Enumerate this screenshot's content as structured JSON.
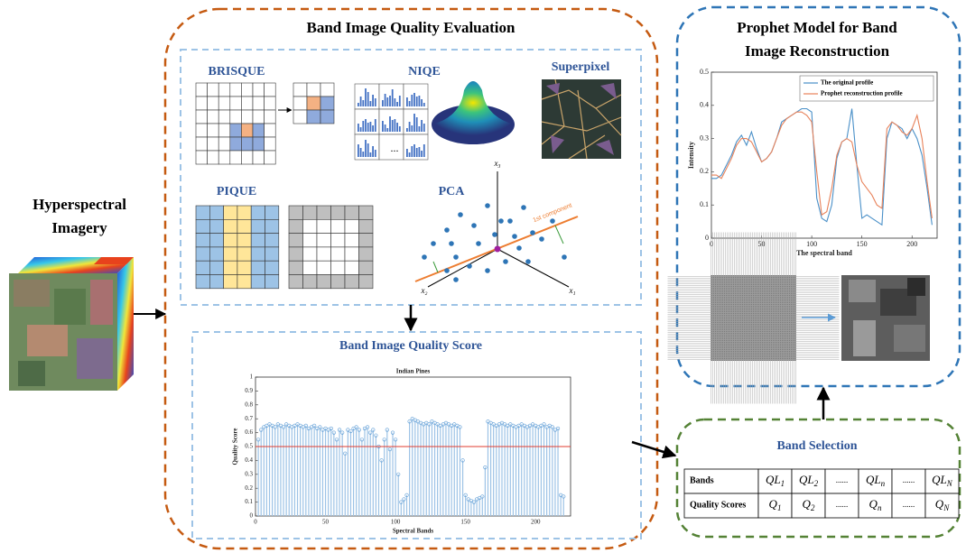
{
  "input": {
    "title": [
      "Hyperspectral",
      "Imagery"
    ]
  },
  "evaluation": {
    "title": "Band Image Quality Evaluation",
    "methods": [
      "BRISQUE",
      "NIQE",
      "Superpixel",
      "PIQUE",
      "PCA"
    ],
    "niqe_ellipsis": "...",
    "pca_labels": [
      "x₃",
      "x₂",
      "x₁",
      "1st component"
    ]
  },
  "score": {
    "title": "Band Image Quality Score",
    "chart_data": {
      "type": "bar",
      "title": "Indian Pines",
      "x_label": "Spectral Bands",
      "y_label": "Quality Score",
      "color": "#9dc3e6",
      "marker_color": "#5b9bd5",
      "threshold": 0.5,
      "threshold_color": "#e03c31",
      "xlim": [
        0,
        225
      ],
      "xticks": [
        0,
        50,
        100,
        150,
        200
      ],
      "ylim": [
        0,
        1
      ],
      "yticks": [
        0,
        0.1,
        0.2,
        0.3,
        0.4,
        0.5,
        0.6,
        0.7,
        0.8,
        0.9,
        1
      ],
      "x": [
        2,
        4,
        6,
        8,
        10,
        12,
        14,
        16,
        18,
        20,
        22,
        24,
        26,
        28,
        30,
        32,
        34,
        36,
        38,
        40,
        42,
        44,
        46,
        48,
        50,
        52,
        54,
        56,
        58,
        60,
        62,
        64,
        66,
        68,
        70,
        72,
        74,
        76,
        78,
        80,
        82,
        84,
        86,
        88,
        90,
        92,
        94,
        96,
        98,
        100,
        102,
        104,
        106,
        108,
        110,
        112,
        114,
        116,
        118,
        120,
        122,
        124,
        126,
        128,
        130,
        132,
        134,
        136,
        138,
        140,
        142,
        144,
        146,
        148,
        150,
        152,
        154,
        156,
        158,
        160,
        162,
        164,
        166,
        168,
        170,
        172,
        174,
        176,
        178,
        180,
        182,
        184,
        186,
        188,
        190,
        192,
        194,
        196,
        198,
        200,
        202,
        204,
        206,
        208,
        210,
        212,
        214,
        216,
        218,
        220
      ],
      "values": [
        0.55,
        0.62,
        0.64,
        0.65,
        0.66,
        0.65,
        0.64,
        0.66,
        0.65,
        0.64,
        0.66,
        0.65,
        0.64,
        0.65,
        0.66,
        0.65,
        0.64,
        0.65,
        0.63,
        0.64,
        0.65,
        0.63,
        0.64,
        0.62,
        0.63,
        0.62,
        0.63,
        0.6,
        0.55,
        0.62,
        0.6,
        0.45,
        0.62,
        0.61,
        0.63,
        0.64,
        0.62,
        0.55,
        0.63,
        0.64,
        0.6,
        0.62,
        0.58,
        0.5,
        0.4,
        0.55,
        0.62,
        0.48,
        0.6,
        0.55,
        0.3,
        0.1,
        0.12,
        0.15,
        0.68,
        0.7,
        0.69,
        0.68,
        0.67,
        0.66,
        0.67,
        0.66,
        0.68,
        0.67,
        0.66,
        0.65,
        0.66,
        0.67,
        0.66,
        0.65,
        0.66,
        0.65,
        0.64,
        0.4,
        0.15,
        0.12,
        0.11,
        0.1,
        0.12,
        0.13,
        0.14,
        0.35,
        0.68,
        0.67,
        0.66,
        0.65,
        0.66,
        0.67,
        0.66,
        0.65,
        0.66,
        0.65,
        0.64,
        0.65,
        0.66,
        0.65,
        0.64,
        0.65,
        0.66,
        0.65,
        0.64,
        0.65,
        0.66,
        0.64,
        0.65,
        0.64,
        0.62,
        0.63,
        0.15,
        0.14
      ]
    }
  },
  "prophet": {
    "title": [
      "Prophet Model for Band",
      "Image Reconstruction"
    ],
    "chart_data": {
      "type": "line",
      "x_label": "The spectral band",
      "y_label": "Intensity",
      "legend": "upper-right",
      "xlim": [
        0,
        225
      ],
      "xticks": [
        0,
        50,
        100,
        150,
        200
      ],
      "ylim": [
        0,
        0.5
      ],
      "yticks": [
        0,
        0.1,
        0.2,
        0.3,
        0.4,
        0.5
      ],
      "x": [
        0,
        5,
        10,
        15,
        20,
        25,
        30,
        35,
        40,
        45,
        50,
        55,
        60,
        65,
        70,
        75,
        80,
        85,
        90,
        95,
        100,
        105,
        110,
        115,
        120,
        125,
        130,
        135,
        140,
        145,
        150,
        155,
        160,
        165,
        170,
        175,
        180,
        185,
        190,
        195,
        200,
        205,
        210,
        215,
        220
      ],
      "series": [
        {
          "name": "The original profile",
          "color": "#4a90c8",
          "values": [
            0.18,
            0.18,
            0.19,
            0.22,
            0.25,
            0.29,
            0.31,
            0.28,
            0.32,
            0.27,
            0.23,
            0.24,
            0.26,
            0.3,
            0.35,
            0.36,
            0.37,
            0.38,
            0.39,
            0.39,
            0.38,
            0.12,
            0.06,
            0.05,
            0.1,
            0.24,
            0.29,
            0.3,
            0.39,
            0.22,
            0.06,
            0.07,
            0.06,
            0.05,
            0.04,
            0.3,
            0.35,
            0.34,
            0.33,
            0.3,
            0.33,
            0.3,
            0.25,
            0.15,
            0.04
          ]
        },
        {
          "name": "Prophet reconstruction profile",
          "color": "#e8825a",
          "values": [
            0.19,
            0.19,
            0.18,
            0.21,
            0.24,
            0.28,
            0.3,
            0.3,
            0.29,
            0.26,
            0.23,
            0.24,
            0.26,
            0.3,
            0.34,
            0.36,
            0.37,
            0.38,
            0.38,
            0.37,
            0.35,
            0.2,
            0.07,
            0.08,
            0.15,
            0.25,
            0.29,
            0.3,
            0.29,
            0.22,
            0.17,
            0.15,
            0.13,
            0.1,
            0.09,
            0.33,
            0.35,
            0.34,
            0.32,
            0.31,
            0.33,
            0.37,
            0.3,
            0.17,
            0.06
          ]
        }
      ]
    }
  },
  "selection": {
    "title": "Band Selection",
    "table": {
      "rows": [
        [
          "Bands",
          {
            "base": "QL",
            "sub": "1"
          },
          {
            "base": "QL",
            "sub": "2"
          },
          "......",
          {
            "base": "QL",
            "sub": "n"
          },
          "......",
          {
            "base": "QL",
            "sub": "N"
          }
        ],
        [
          "Quality Scores",
          {
            "base": "Q",
            "sub": "1"
          },
          {
            "base": "Q",
            "sub": "2"
          },
          "......",
          {
            "base": "Q",
            "sub": "n"
          },
          "......",
          {
            "base": "Q",
            "sub": "N"
          }
        ]
      ]
    }
  }
}
